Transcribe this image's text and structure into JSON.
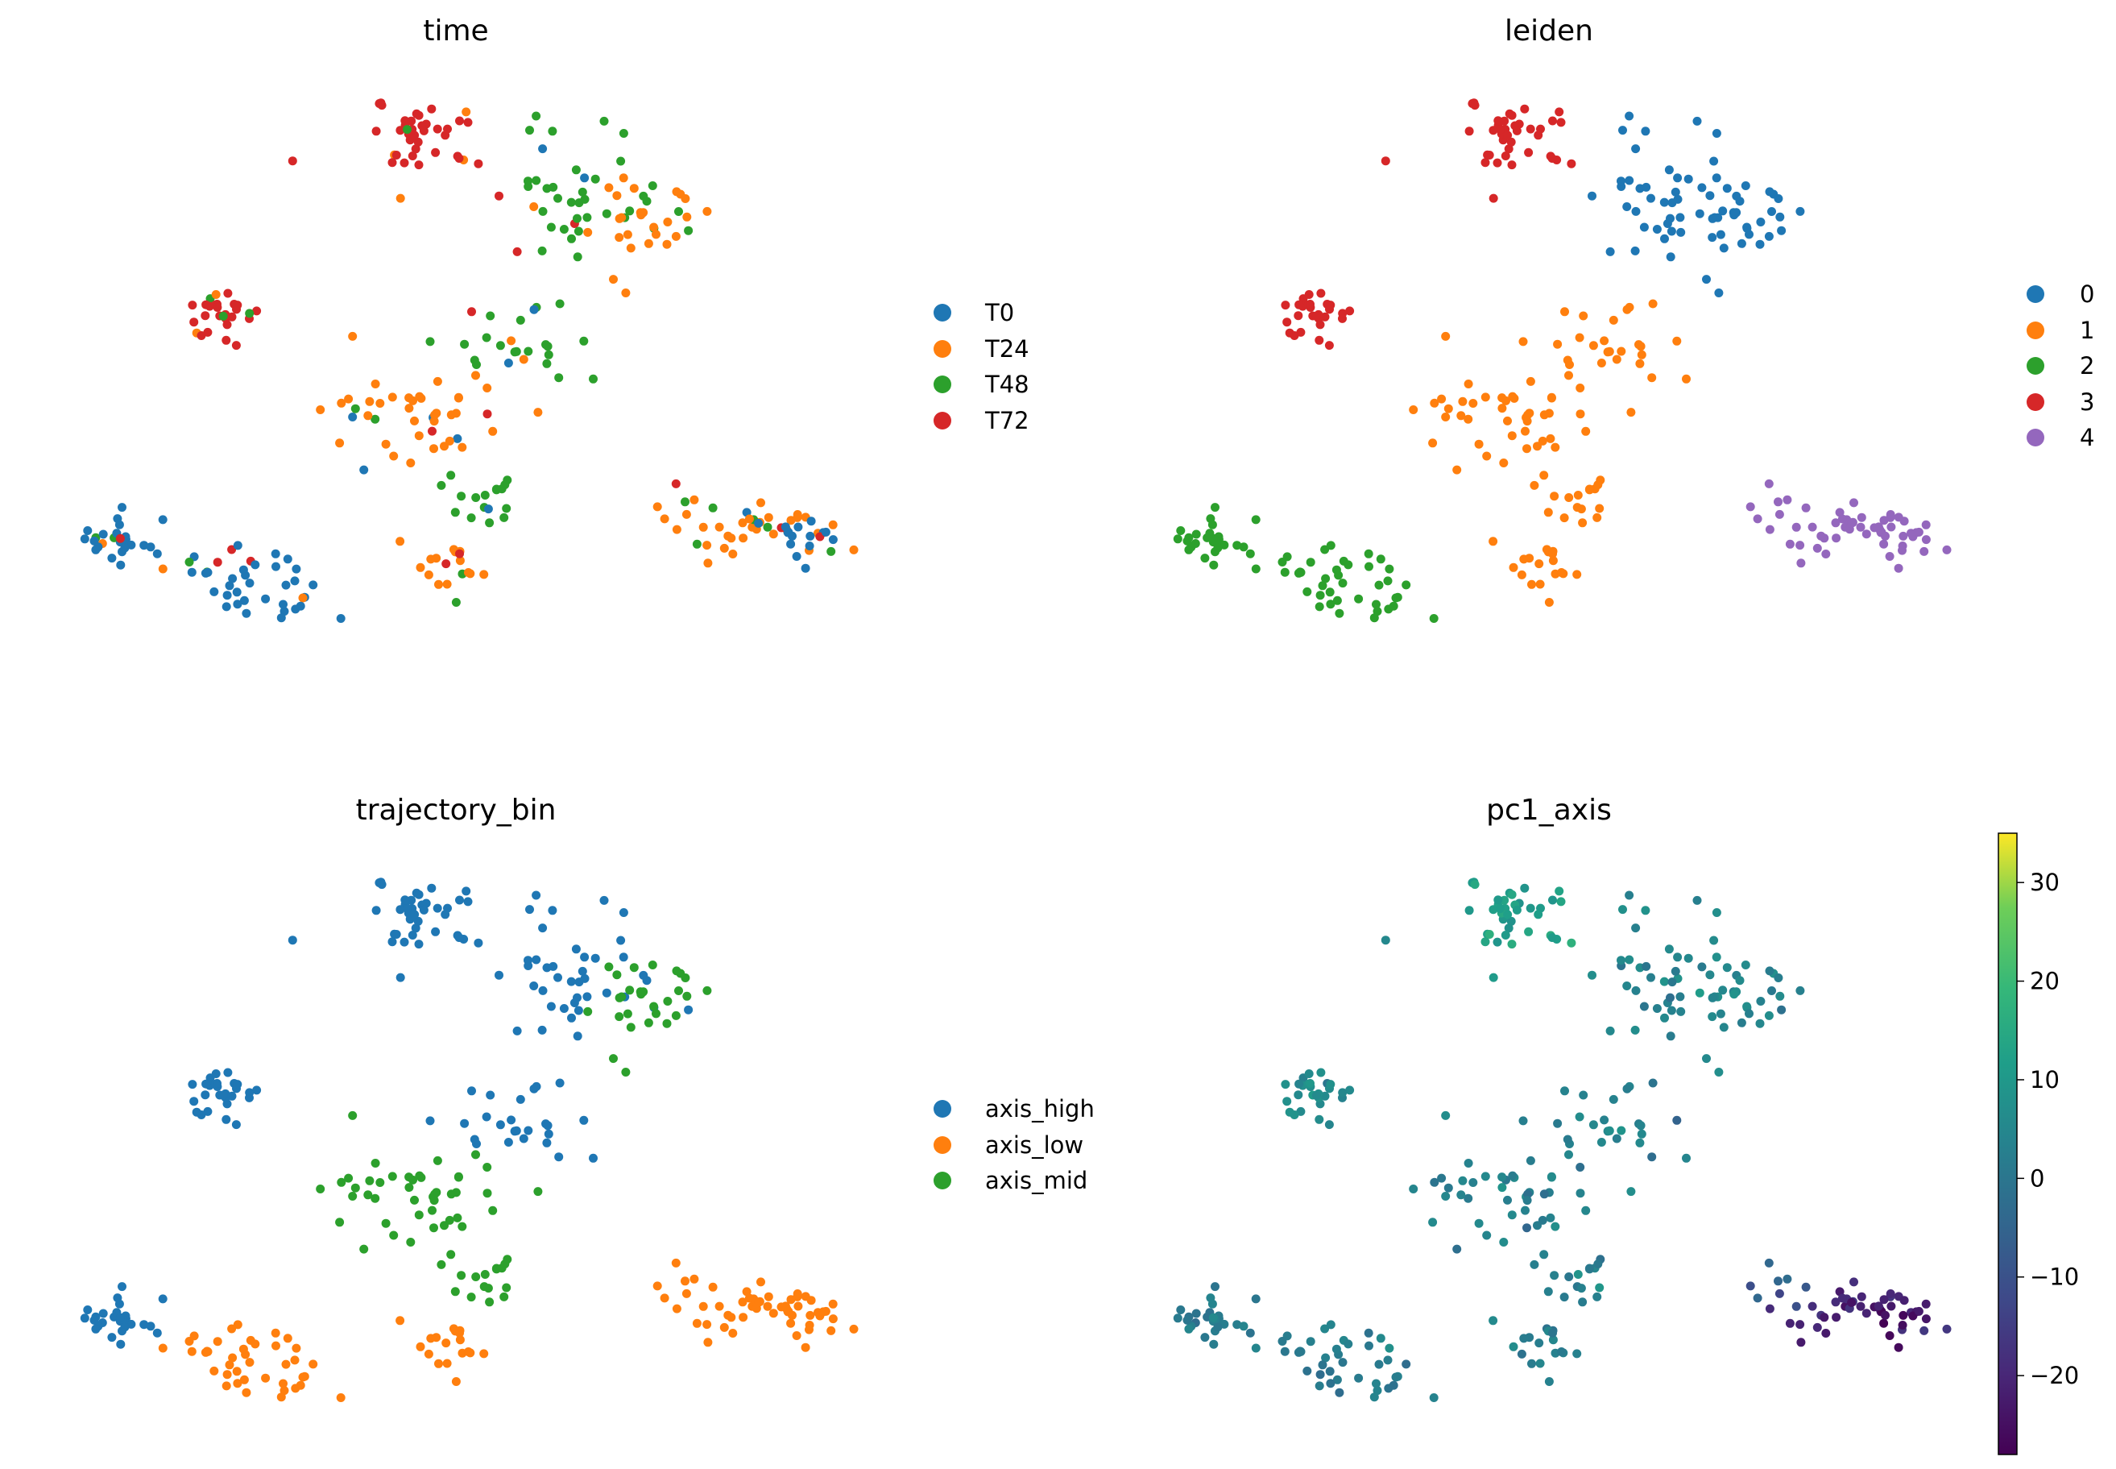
{
  "chart_data": [
    {
      "type": "scatter",
      "title": "time",
      "legend": {
        "placement": "right",
        "entries": [
          {
            "label": "T0",
            "color": "#1f77b4"
          },
          {
            "label": "T24",
            "color": "#ff7f0e"
          },
          {
            "label": "T48",
            "color": "#2ca02c"
          },
          {
            "label": "T72",
            "color": "#d62728"
          }
        ]
      },
      "axes": "off",
      "grid": false
    },
    {
      "type": "scatter",
      "title": "leiden",
      "legend": {
        "placement": "right",
        "entries": [
          {
            "label": "0",
            "color": "#1f77b4"
          },
          {
            "label": "1",
            "color": "#ff7f0e"
          },
          {
            "label": "2",
            "color": "#2ca02c"
          },
          {
            "label": "3",
            "color": "#d62728"
          },
          {
            "label": "4",
            "color": "#9467bd"
          }
        ]
      },
      "axes": "off",
      "grid": false
    },
    {
      "type": "scatter",
      "title": "trajectory_bin",
      "legend": {
        "placement": "right",
        "entries": [
          {
            "label": "axis_high",
            "color": "#1f77b4"
          },
          {
            "label": "axis_low",
            "color": "#ff7f0e"
          },
          {
            "label": "axis_mid",
            "color": "#2ca02c"
          }
        ]
      },
      "axes": "off",
      "grid": false
    },
    {
      "type": "scatter",
      "title": "pc1_axis",
      "colorbar": {
        "colormap": "viridis",
        "range": [
          -28,
          35
        ],
        "ticks": [
          30,
          20,
          10,
          0,
          -10,
          -20
        ],
        "tick_labels": [
          "30",
          "20",
          "10",
          "0",
          "−10",
          "−20"
        ]
      },
      "axes": "off",
      "grid": false
    }
  ]
}
